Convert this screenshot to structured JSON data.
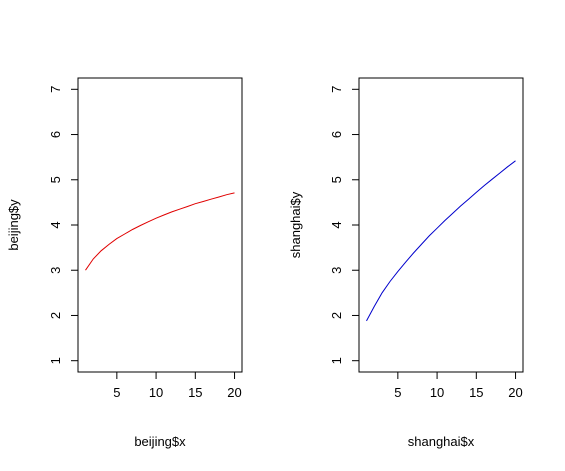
{
  "chart_data": [
    {
      "type": "line",
      "title": "",
      "xlabel": "beijing$x",
      "ylabel": "beijing$y",
      "xlim": [
        0.05,
        20.95
      ],
      "ylim": [
        0.75,
        7.25
      ],
      "xticks": [
        5,
        10,
        15,
        20
      ],
      "yticks": [
        1,
        2,
        3,
        4,
        5,
        6,
        7
      ],
      "grid": false,
      "legend": "none",
      "series": [
        {
          "color": "#e00000",
          "x": [
            1,
            2,
            3,
            4,
            5,
            6,
            7,
            8,
            9,
            10,
            11,
            12,
            13,
            14,
            15,
            16,
            17,
            18,
            19,
            20
          ],
          "y": [
            3.0,
            3.25,
            3.43,
            3.57,
            3.7,
            3.8,
            3.9,
            3.99,
            4.07,
            4.15,
            4.22,
            4.29,
            4.35,
            4.41,
            4.47,
            4.52,
            4.57,
            4.62,
            4.67,
            4.71
          ]
        }
      ]
    },
    {
      "type": "line",
      "title": "",
      "xlabel": "shanghai$x",
      "ylabel": "shanghai$y",
      "xlim": [
        0.05,
        20.95
      ],
      "ylim": [
        0.75,
        7.25
      ],
      "xticks": [
        5,
        10,
        15,
        20
      ],
      "yticks": [
        1,
        2,
        3,
        4,
        5,
        6,
        7
      ],
      "grid": false,
      "legend": "none",
      "series": [
        {
          "color": "#0000cc",
          "x": [
            1,
            2,
            3,
            4,
            5,
            6,
            7,
            8,
            9,
            10,
            11,
            12,
            13,
            14,
            15,
            16,
            17,
            18,
            19,
            20
          ],
          "y": [
            1.88,
            2.2,
            2.5,
            2.75,
            2.97,
            3.18,
            3.38,
            3.57,
            3.76,
            3.93,
            4.1,
            4.26,
            4.42,
            4.57,
            4.72,
            4.87,
            5.01,
            5.15,
            5.29,
            5.42
          ]
        }
      ]
    }
  ]
}
